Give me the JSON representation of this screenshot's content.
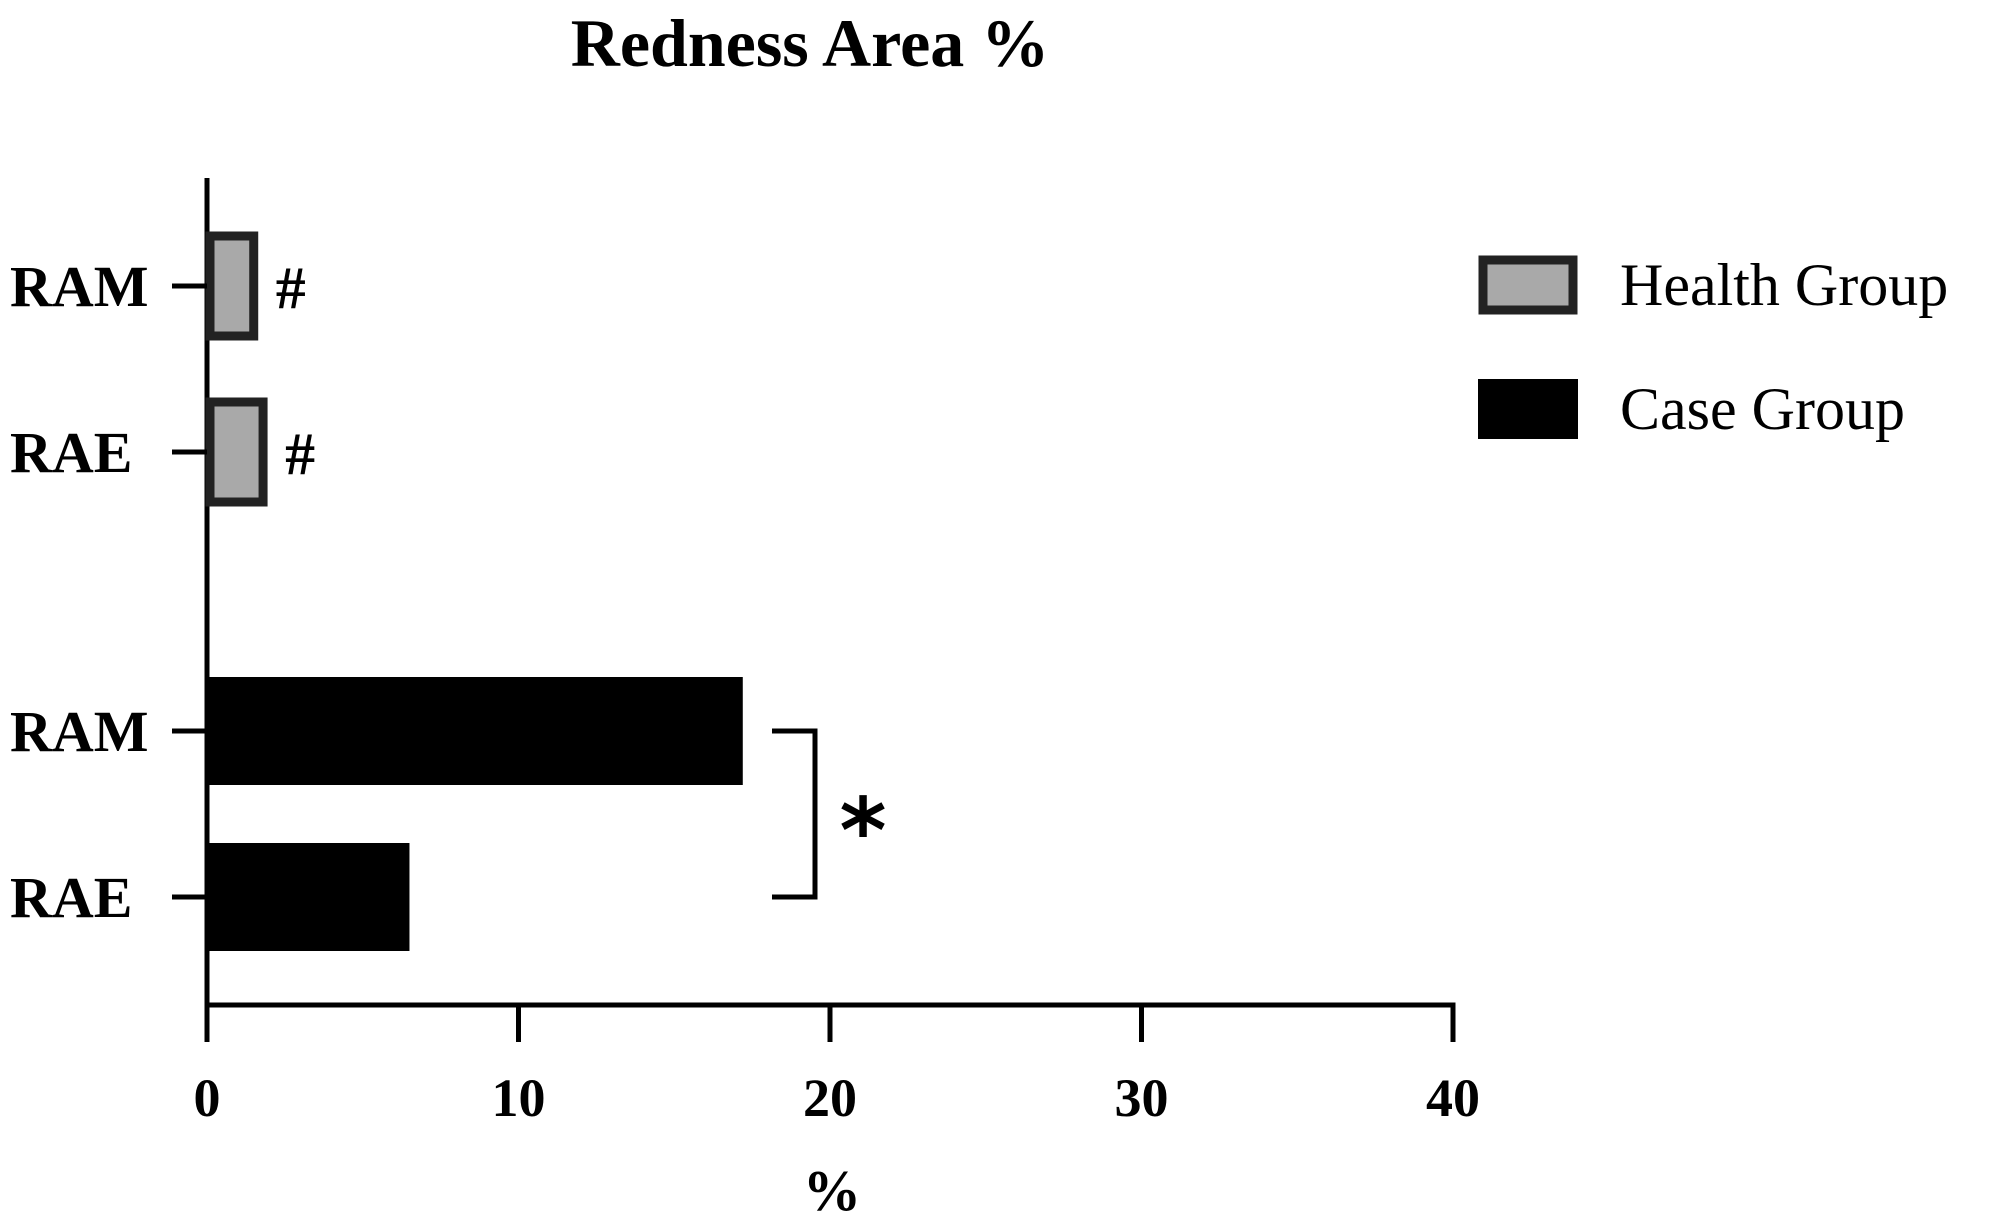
{
  "chart_data": {
    "type": "bar",
    "orientation": "horizontal",
    "title": "Redness Area %",
    "xlabel": "%",
    "ylabel": "",
    "xlim": [
      0,
      40
    ],
    "xticks": [
      "0",
      "10",
      "20",
      "30",
      "40"
    ],
    "grid": false,
    "legend_position": "right",
    "groups": [
      {
        "series": "Health Group",
        "bars": [
          {
            "label": "RAM",
            "value": 1.5,
            "annotation": "#"
          },
          {
            "label": "RAE",
            "value": 1.8,
            "annotation": "#"
          }
        ]
      },
      {
        "series": "Case Group",
        "bars": [
          {
            "label": "RAM",
            "value": 17.2,
            "annotation": ""
          },
          {
            "label": "RAE",
            "value": 6.5,
            "annotation": ""
          }
        ]
      }
    ],
    "series": [
      {
        "name": "Health Group",
        "color": "#a9a9a9",
        "edge": "#222222"
      },
      {
        "name": "Case Group",
        "color": "#000000",
        "edge": "#000000"
      }
    ],
    "significance": {
      "symbol": "*",
      "between": [
        "Case Group RAM",
        "Case Group RAE"
      ]
    }
  }
}
